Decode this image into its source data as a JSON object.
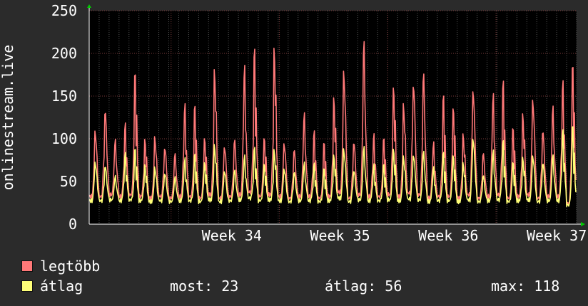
{
  "colors": {
    "background": "#2b2b2b",
    "plot_background": "#000000",
    "grid": "#555555",
    "week_grid": "#7a3a3a",
    "axis_arrow": "#00cc00",
    "max_series": "#ff7878",
    "avg_series": "#ffff78"
  },
  "legend": {
    "max_label": "legtöbb",
    "avg_label": "átlag",
    "now": "most: 23",
    "average": "átlag: 56",
    "maximum": "max: 118"
  },
  "chart_data": {
    "type": "line",
    "ylabel": "onlinestream.live",
    "ylim": [
      0,
      250
    ],
    "yticks": [
      0,
      50,
      100,
      150,
      200,
      250
    ],
    "xlim": [
      0,
      4.5
    ],
    "xticks": [
      {
        "label": "Week 34",
        "pos": 1.0
      },
      {
        "label": "Week 35",
        "pos": 2.0
      },
      {
        "label": "Week 36",
        "pos": 3.0
      },
      {
        "label": "Week 37",
        "pos": 4.0
      }
    ],
    "grid": true,
    "series": [
      {
        "name": "legtöbb",
        "color": "#ff7878",
        "daily_peaks": [
          120,
          152,
          108,
          120,
          176,
          100,
          110,
          102,
          92,
          145,
          138,
          100,
          190,
          102,
          112,
          195,
          205,
          100,
          212,
          105,
          100,
          140,
          110,
          95,
          150,
          195,
          110,
          235,
          108,
          100,
          160,
          150,
          185,
          198,
          100,
          150,
          135,
          110,
          175,
          95,
          162,
          168,
          112,
          132,
          160,
          125,
          150,
          170,
          185
        ],
        "daily_lows": [
          30,
          30,
          32,
          30,
          32,
          30,
          28,
          30,
          28,
          30,
          30,
          28,
          32,
          28,
          30,
          32,
          35,
          30,
          32,
          30,
          28,
          30,
          30,
          28,
          30,
          35,
          28,
          32,
          30,
          30,
          32,
          30,
          34,
          32,
          28,
          30,
          30,
          28,
          32,
          28,
          30,
          32,
          28,
          30,
          32,
          28,
          30,
          30,
          22
        ]
      },
      {
        "name": "átlag",
        "color": "#ffff78",
        "daily_peaks": [
          80,
          78,
          62,
          85,
          88,
          70,
          72,
          68,
          62,
          80,
          82,
          72,
          98,
          70,
          72,
          85,
          90,
          70,
          90,
          72,
          70,
          78,
          72,
          65,
          82,
          96,
          72,
          100,
          72,
          70,
          88,
          85,
          92,
          96,
          70,
          84,
          80,
          75,
          112,
          65,
          92,
          98,
          72,
          80,
          88,
          82,
          88,
          112,
          115
        ],
        "daily_lows": [
          25,
          25,
          26,
          25,
          26,
          25,
          24,
          25,
          24,
          25,
          25,
          24,
          26,
          24,
          25,
          26,
          28,
          25,
          26,
          25,
          24,
          25,
          25,
          24,
          25,
          28,
          24,
          26,
          25,
          25,
          26,
          25,
          27,
          26,
          24,
          25,
          25,
          24,
          26,
          24,
          25,
          26,
          24,
          25,
          26,
          24,
          25,
          25,
          20
        ]
      }
    ]
  }
}
